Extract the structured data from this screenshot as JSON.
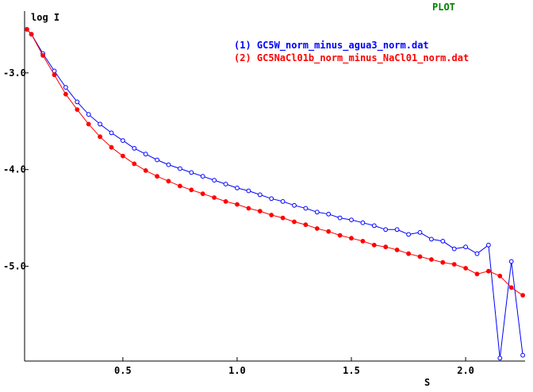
{
  "window": {
    "title": "PLOT",
    "title_color": "#008000"
  },
  "chart_data": {
    "type": "scatter",
    "xlabel": "S",
    "ylabel": "log I",
    "xlim": [
      0.07,
      2.26
    ],
    "ylim": [
      -5.98,
      -2.55
    ],
    "x_ticks": [
      0.5,
      1.0,
      1.5,
      2.0
    ],
    "x_tick_labels": [
      "0.5",
      "1.0",
      "1.5",
      "2.0"
    ],
    "y_ticks": [
      -3.0,
      -4.0,
      -5.0
    ],
    "y_tick_labels": [
      "-3.0",
      "-4.0",
      "-5.0"
    ],
    "legend_position": "top-right",
    "series": [
      {
        "name": "(1) GC5W_norm_minus_agua3_norm.dat",
        "color": "#0000ff",
        "marker": "open-circle",
        "x": [
          0.08,
          0.1,
          0.15,
          0.2,
          0.25,
          0.3,
          0.35,
          0.4,
          0.45,
          0.5,
          0.55,
          0.6,
          0.65,
          0.7,
          0.75,
          0.8,
          0.85,
          0.9,
          0.95,
          1.0,
          1.05,
          1.1,
          1.15,
          1.2,
          1.25,
          1.3,
          1.35,
          1.4,
          1.45,
          1.5,
          1.55,
          1.6,
          1.65,
          1.7,
          1.75,
          1.8,
          1.85,
          1.9,
          1.95,
          2.0,
          2.05,
          2.1,
          2.15,
          2.2,
          2.25
        ],
        "y": [
          -2.55,
          -2.6,
          -2.8,
          -2.98,
          -3.15,
          -3.3,
          -3.43,
          -3.53,
          -3.62,
          -3.7,
          -3.78,
          -3.84,
          -3.9,
          -3.95,
          -3.99,
          -4.03,
          -4.07,
          -4.11,
          -4.15,
          -4.19,
          -4.22,
          -4.26,
          -4.3,
          -4.33,
          -4.37,
          -4.4,
          -4.44,
          -4.46,
          -4.5,
          -4.52,
          -4.55,
          -4.58,
          -4.62,
          -4.62,
          -4.67,
          -4.65,
          -4.72,
          -4.74,
          -4.82,
          -4.8,
          -4.87,
          -4.78,
          -5.95,
          -4.95,
          -5.92
        ]
      },
      {
        "name": "(2) GC5NaCl01b_norm_minus_NaCl01_norm.dat",
        "color": "#ff0000",
        "marker": "filled-circle",
        "x": [
          0.08,
          0.1,
          0.15,
          0.2,
          0.25,
          0.3,
          0.35,
          0.4,
          0.45,
          0.5,
          0.55,
          0.6,
          0.65,
          0.7,
          0.75,
          0.8,
          0.85,
          0.9,
          0.95,
          1.0,
          1.05,
          1.1,
          1.15,
          1.2,
          1.25,
          1.3,
          1.35,
          1.4,
          1.45,
          1.5,
          1.55,
          1.6,
          1.65,
          1.7,
          1.75,
          1.8,
          1.85,
          1.9,
          1.95,
          2.0,
          2.05,
          2.1,
          2.15,
          2.2,
          2.25
        ],
        "y": [
          -2.55,
          -2.6,
          -2.82,
          -3.02,
          -3.22,
          -3.38,
          -3.53,
          -3.66,
          -3.77,
          -3.86,
          -3.94,
          -4.01,
          -4.07,
          -4.12,
          -4.17,
          -4.21,
          -4.25,
          -4.29,
          -4.33,
          -4.36,
          -4.4,
          -4.43,
          -4.47,
          -4.5,
          -4.54,
          -4.57,
          -4.61,
          -4.64,
          -4.68,
          -4.71,
          -4.74,
          -4.78,
          -4.8,
          -4.83,
          -4.87,
          -4.9,
          -4.93,
          -4.96,
          -4.98,
          -5.02,
          -5.08,
          -5.05,
          -5.1,
          -5.22,
          -5.3
        ]
      }
    ]
  }
}
